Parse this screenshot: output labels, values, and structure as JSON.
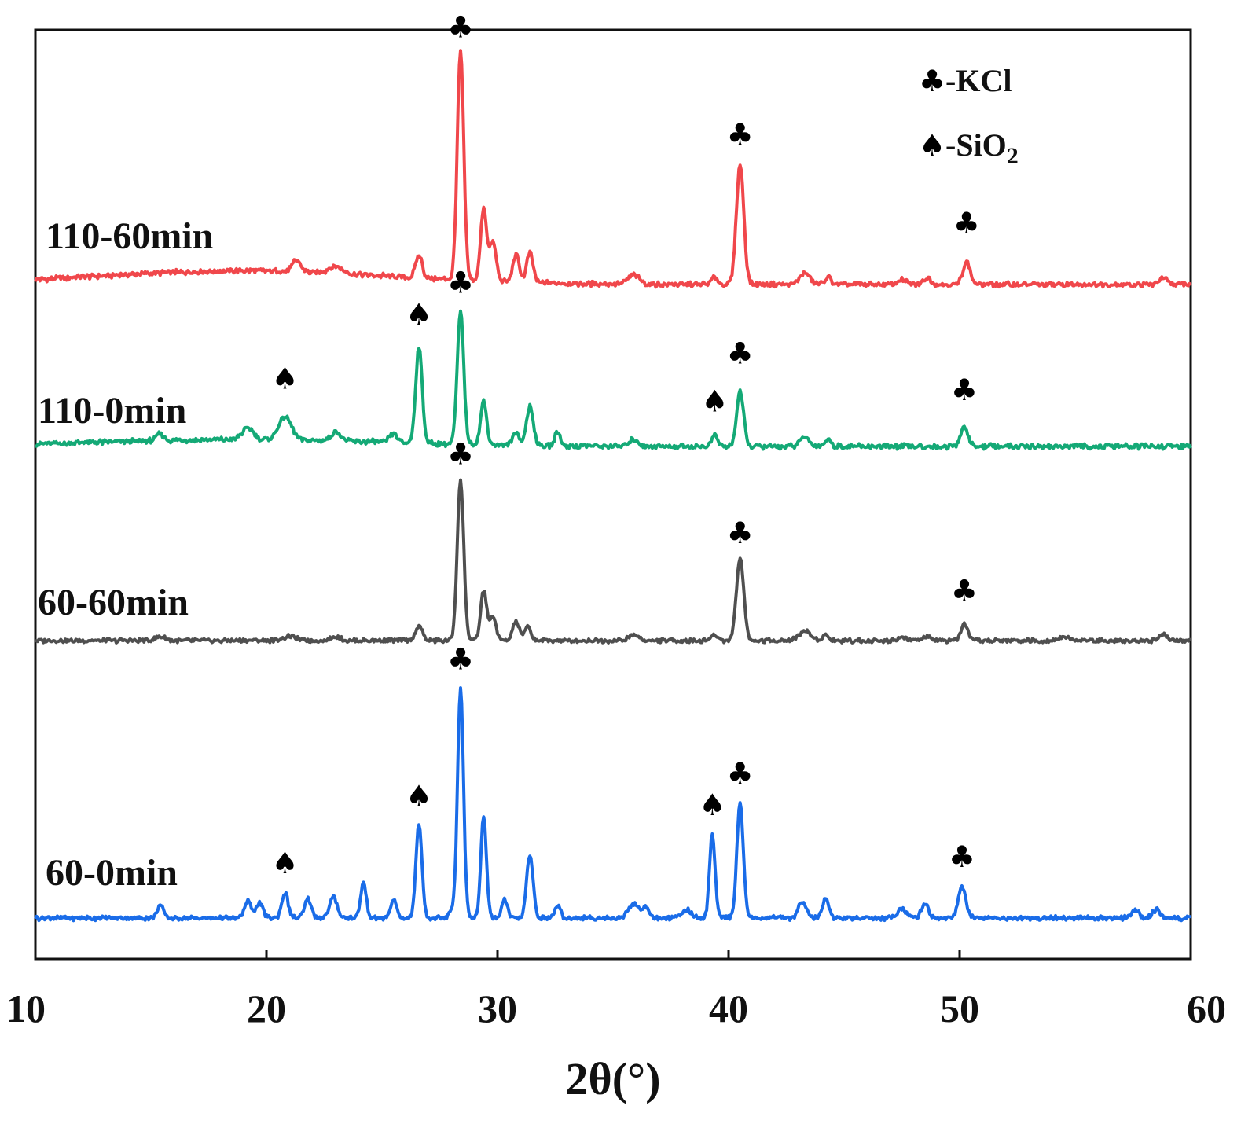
{
  "chart_data": {
    "type": "line",
    "title": "",
    "xlabel": "2θ(°)",
    "ylabel": "",
    "xlim": [
      10,
      60
    ],
    "xticks": [
      "10",
      "20",
      "30",
      "40",
      "50",
      "60"
    ],
    "legend": {
      "placement": "top-right",
      "entries": [
        {
          "symbol": "♣",
          "label": "-KCl"
        },
        {
          "symbol": "♠",
          "label": "-SiO",
          "subscript": "2"
        }
      ]
    },
    "series": [
      {
        "name": "110-60min",
        "color": "#f0474b",
        "baseline": 0.06,
        "peaks": [
          [
            21.3,
            0.05,
            0.18
          ],
          [
            23.0,
            0.03,
            0.3
          ],
          [
            26.6,
            0.1,
            0.14
          ],
          [
            28.4,
            1.0,
            0.14
          ],
          [
            29.4,
            0.32,
            0.13
          ],
          [
            29.8,
            0.17,
            0.14
          ],
          [
            30.8,
            0.12,
            0.14
          ],
          [
            31.4,
            0.13,
            0.14
          ],
          [
            35.9,
            0.04,
            0.25
          ],
          [
            39.4,
            0.03,
            0.14
          ],
          [
            40.5,
            0.53,
            0.16
          ],
          [
            43.3,
            0.05,
            0.22
          ],
          [
            44.3,
            0.03,
            0.14
          ],
          [
            47.5,
            0.02,
            0.18
          ],
          [
            48.6,
            0.03,
            0.16
          ],
          [
            50.3,
            0.1,
            0.16
          ],
          [
            58.8,
            0.03,
            0.16
          ]
        ],
        "markers": [
          {
            "symbol": "♣",
            "x": 28.4,
            "height": 1.07
          },
          {
            "symbol": "♣",
            "x": 40.5,
            "height": 0.6
          },
          {
            "symbol": "♣",
            "x": 50.3,
            "height": 0.21
          }
        ]
      },
      {
        "name": "110-0min",
        "color": "#14a976",
        "baseline": 0.03,
        "peaks": [
          [
            15.4,
            0.03,
            0.16
          ],
          [
            19.2,
            0.05,
            0.25
          ],
          [
            20.8,
            0.1,
            0.28
          ],
          [
            23.0,
            0.04,
            0.2
          ],
          [
            25.5,
            0.04,
            0.16
          ],
          [
            26.6,
            0.42,
            0.14
          ],
          [
            28.4,
            0.58,
            0.14
          ],
          [
            29.4,
            0.19,
            0.13
          ],
          [
            30.8,
            0.06,
            0.13
          ],
          [
            31.4,
            0.17,
            0.15
          ],
          [
            32.6,
            0.06,
            0.12
          ],
          [
            35.9,
            0.03,
            0.2
          ],
          [
            39.4,
            0.05,
            0.13
          ],
          [
            40.5,
            0.24,
            0.15
          ],
          [
            43.3,
            0.04,
            0.2
          ],
          [
            44.3,
            0.03,
            0.14
          ],
          [
            50.2,
            0.09,
            0.15
          ]
        ],
        "markers": [
          {
            "symbol": "♠",
            "x": 20.8,
            "height": 0.24
          },
          {
            "symbol": "♠",
            "x": 26.6,
            "height": 0.52
          },
          {
            "symbol": "♣",
            "x": 28.4,
            "height": 0.66
          },
          {
            "symbol": "♠",
            "x": 39.4,
            "height": 0.14
          },
          {
            "symbol": "♣",
            "x": 40.5,
            "height": 0.35
          },
          {
            "symbol": "♣",
            "x": 50.2,
            "height": 0.19
          }
        ]
      },
      {
        "name": "60-60min",
        "color": "#4f4f4f",
        "baseline": 0.0,
        "peaks": [
          [
            15.4,
            0.02,
            0.2
          ],
          [
            21.0,
            0.02,
            0.3
          ],
          [
            23.0,
            0.02,
            0.2
          ],
          [
            26.6,
            0.08,
            0.14
          ],
          [
            28.4,
            0.83,
            0.14
          ],
          [
            29.4,
            0.26,
            0.13
          ],
          [
            29.8,
            0.12,
            0.14
          ],
          [
            30.8,
            0.1,
            0.14
          ],
          [
            31.3,
            0.07,
            0.14
          ],
          [
            35.9,
            0.03,
            0.2
          ],
          [
            39.4,
            0.03,
            0.14
          ],
          [
            40.5,
            0.43,
            0.16
          ],
          [
            43.3,
            0.05,
            0.25
          ],
          [
            44.2,
            0.03,
            0.14
          ],
          [
            47.5,
            0.02,
            0.18
          ],
          [
            48.6,
            0.02,
            0.15
          ],
          [
            50.2,
            0.08,
            0.15
          ],
          [
            54.5,
            0.02,
            0.2
          ],
          [
            58.8,
            0.03,
            0.16
          ]
        ],
        "markers": [
          {
            "symbol": "♣",
            "x": 28.4,
            "height": 0.9
          },
          {
            "symbol": "♣",
            "x": 40.5,
            "height": 0.49
          },
          {
            "symbol": "♣",
            "x": 50.2,
            "height": 0.19
          }
        ]
      },
      {
        "name": "60-0min",
        "color": "#1a6ce8",
        "baseline": 0.0,
        "peaks": [
          [
            15.4,
            0.06,
            0.14
          ],
          [
            19.2,
            0.08,
            0.15
          ],
          [
            19.7,
            0.07,
            0.15
          ],
          [
            20.8,
            0.12,
            0.14
          ],
          [
            21.8,
            0.09,
            0.14
          ],
          [
            22.9,
            0.1,
            0.16
          ],
          [
            24.2,
            0.17,
            0.12
          ],
          [
            25.5,
            0.09,
            0.12
          ],
          [
            26.6,
            0.45,
            0.13
          ],
          [
            28.0,
            0.04,
            0.12
          ],
          [
            28.4,
            1.1,
            0.13
          ],
          [
            29.4,
            0.49,
            0.12
          ],
          [
            30.3,
            0.09,
            0.12
          ],
          [
            31.4,
            0.3,
            0.14
          ],
          [
            32.6,
            0.06,
            0.12
          ],
          [
            35.9,
            0.07,
            0.22
          ],
          [
            36.4,
            0.05,
            0.15
          ],
          [
            38.2,
            0.04,
            0.2
          ],
          [
            39.3,
            0.4,
            0.12
          ],
          [
            40.5,
            0.55,
            0.14
          ],
          [
            43.2,
            0.08,
            0.18
          ],
          [
            44.2,
            0.09,
            0.14
          ],
          [
            47.5,
            0.05,
            0.18
          ],
          [
            48.5,
            0.07,
            0.15
          ],
          [
            50.1,
            0.15,
            0.16
          ],
          [
            57.6,
            0.04,
            0.16
          ],
          [
            58.5,
            0.04,
            0.16
          ]
        ],
        "markers": [
          {
            "symbol": "♠",
            "x": 20.8,
            "height": 0.2
          },
          {
            "symbol": "♠",
            "x": 26.6,
            "height": 0.52
          },
          {
            "symbol": "♣",
            "x": 28.4,
            "height": 1.18
          },
          {
            "symbol": "♠",
            "x": 39.3,
            "height": 0.48
          },
          {
            "symbol": "♣",
            "x": 40.5,
            "height": 0.63
          },
          {
            "symbol": "♣",
            "x": 50.1,
            "height": 0.23
          }
        ]
      }
    ]
  }
}
